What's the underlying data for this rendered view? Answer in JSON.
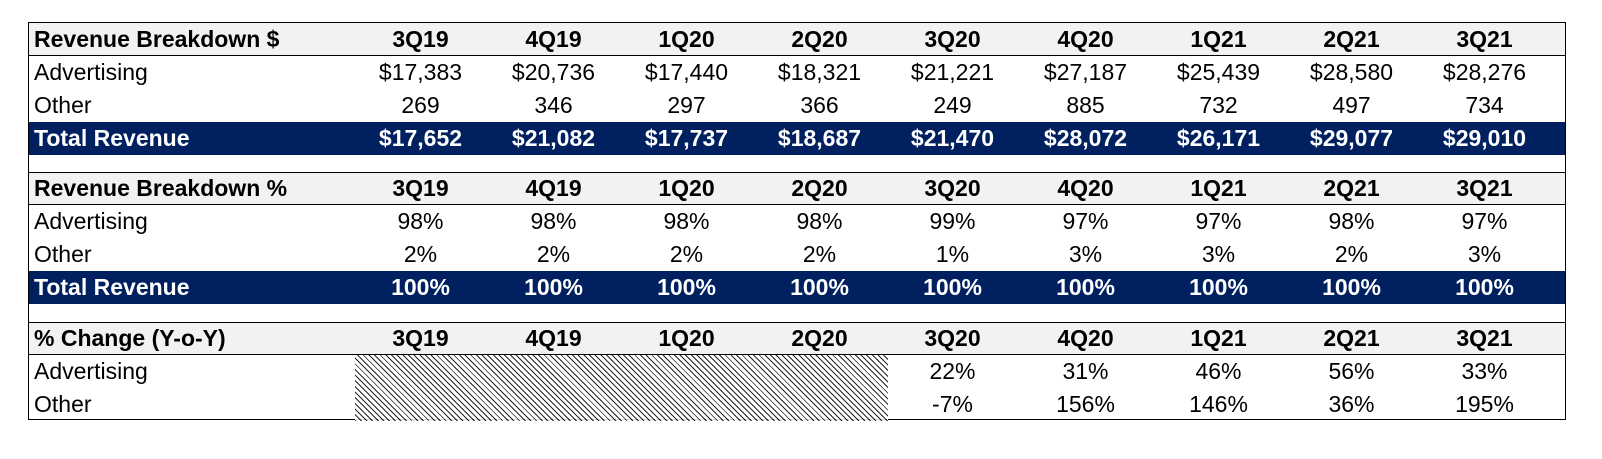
{
  "chart_data": {
    "type": "table",
    "quarters": [
      "3Q19",
      "4Q19",
      "1Q20",
      "2Q20",
      "3Q20",
      "4Q20",
      "1Q21",
      "2Q21",
      "3Q21"
    ],
    "sections": [
      {
        "header": "Revenue Breakdown $",
        "rows": [
          {
            "label": "Advertising",
            "values": [
              "$17,383",
              "$20,736",
              "$17,440",
              "$18,321",
              "$21,221",
              "$27,187",
              "$25,439",
              "$28,580",
              "$28,276"
            ]
          },
          {
            "label": "Other",
            "values": [
              "269",
              "346",
              "297",
              "366",
              "249",
              "885",
              "732",
              "497",
              "734"
            ]
          }
        ],
        "total": {
          "label": "Total Revenue",
          "values": [
            "$17,652",
            "$21,082",
            "$17,737",
            "$18,687",
            "$21,470",
            "$28,072",
            "$26,171",
            "$29,077",
            "$29,010"
          ]
        }
      },
      {
        "header": "Revenue Breakdown %",
        "rows": [
          {
            "label": "Advertising",
            "values": [
              "98%",
              "98%",
              "98%",
              "98%",
              "99%",
              "97%",
              "97%",
              "98%",
              "97%"
            ]
          },
          {
            "label": "Other",
            "values": [
              "2%",
              "2%",
              "2%",
              "2%",
              "1%",
              "3%",
              "3%",
              "2%",
              "3%"
            ]
          }
        ],
        "total": {
          "label": "Total Revenue",
          "values": [
            "100%",
            "100%",
            "100%",
            "100%",
            "100%",
            "100%",
            "100%",
            "100%",
            "100%"
          ]
        }
      },
      {
        "header": "% Change (Y-o-Y)",
        "rows": [
          {
            "label": "Advertising",
            "values": [
              "",
              "",
              "",
              "",
              "22%",
              "31%",
              "46%",
              "56%",
              "33%"
            ]
          },
          {
            "label": "Other",
            "values": [
              "",
              "",
              "",
              "",
              "-7%",
              "156%",
              "146%",
              "36%",
              "195%"
            ]
          }
        ]
      }
    ]
  },
  "colors": {
    "total_row_bg": "#002060",
    "header_row_bg": "#f2f2f2",
    "total_row_text": "#ffffff"
  }
}
